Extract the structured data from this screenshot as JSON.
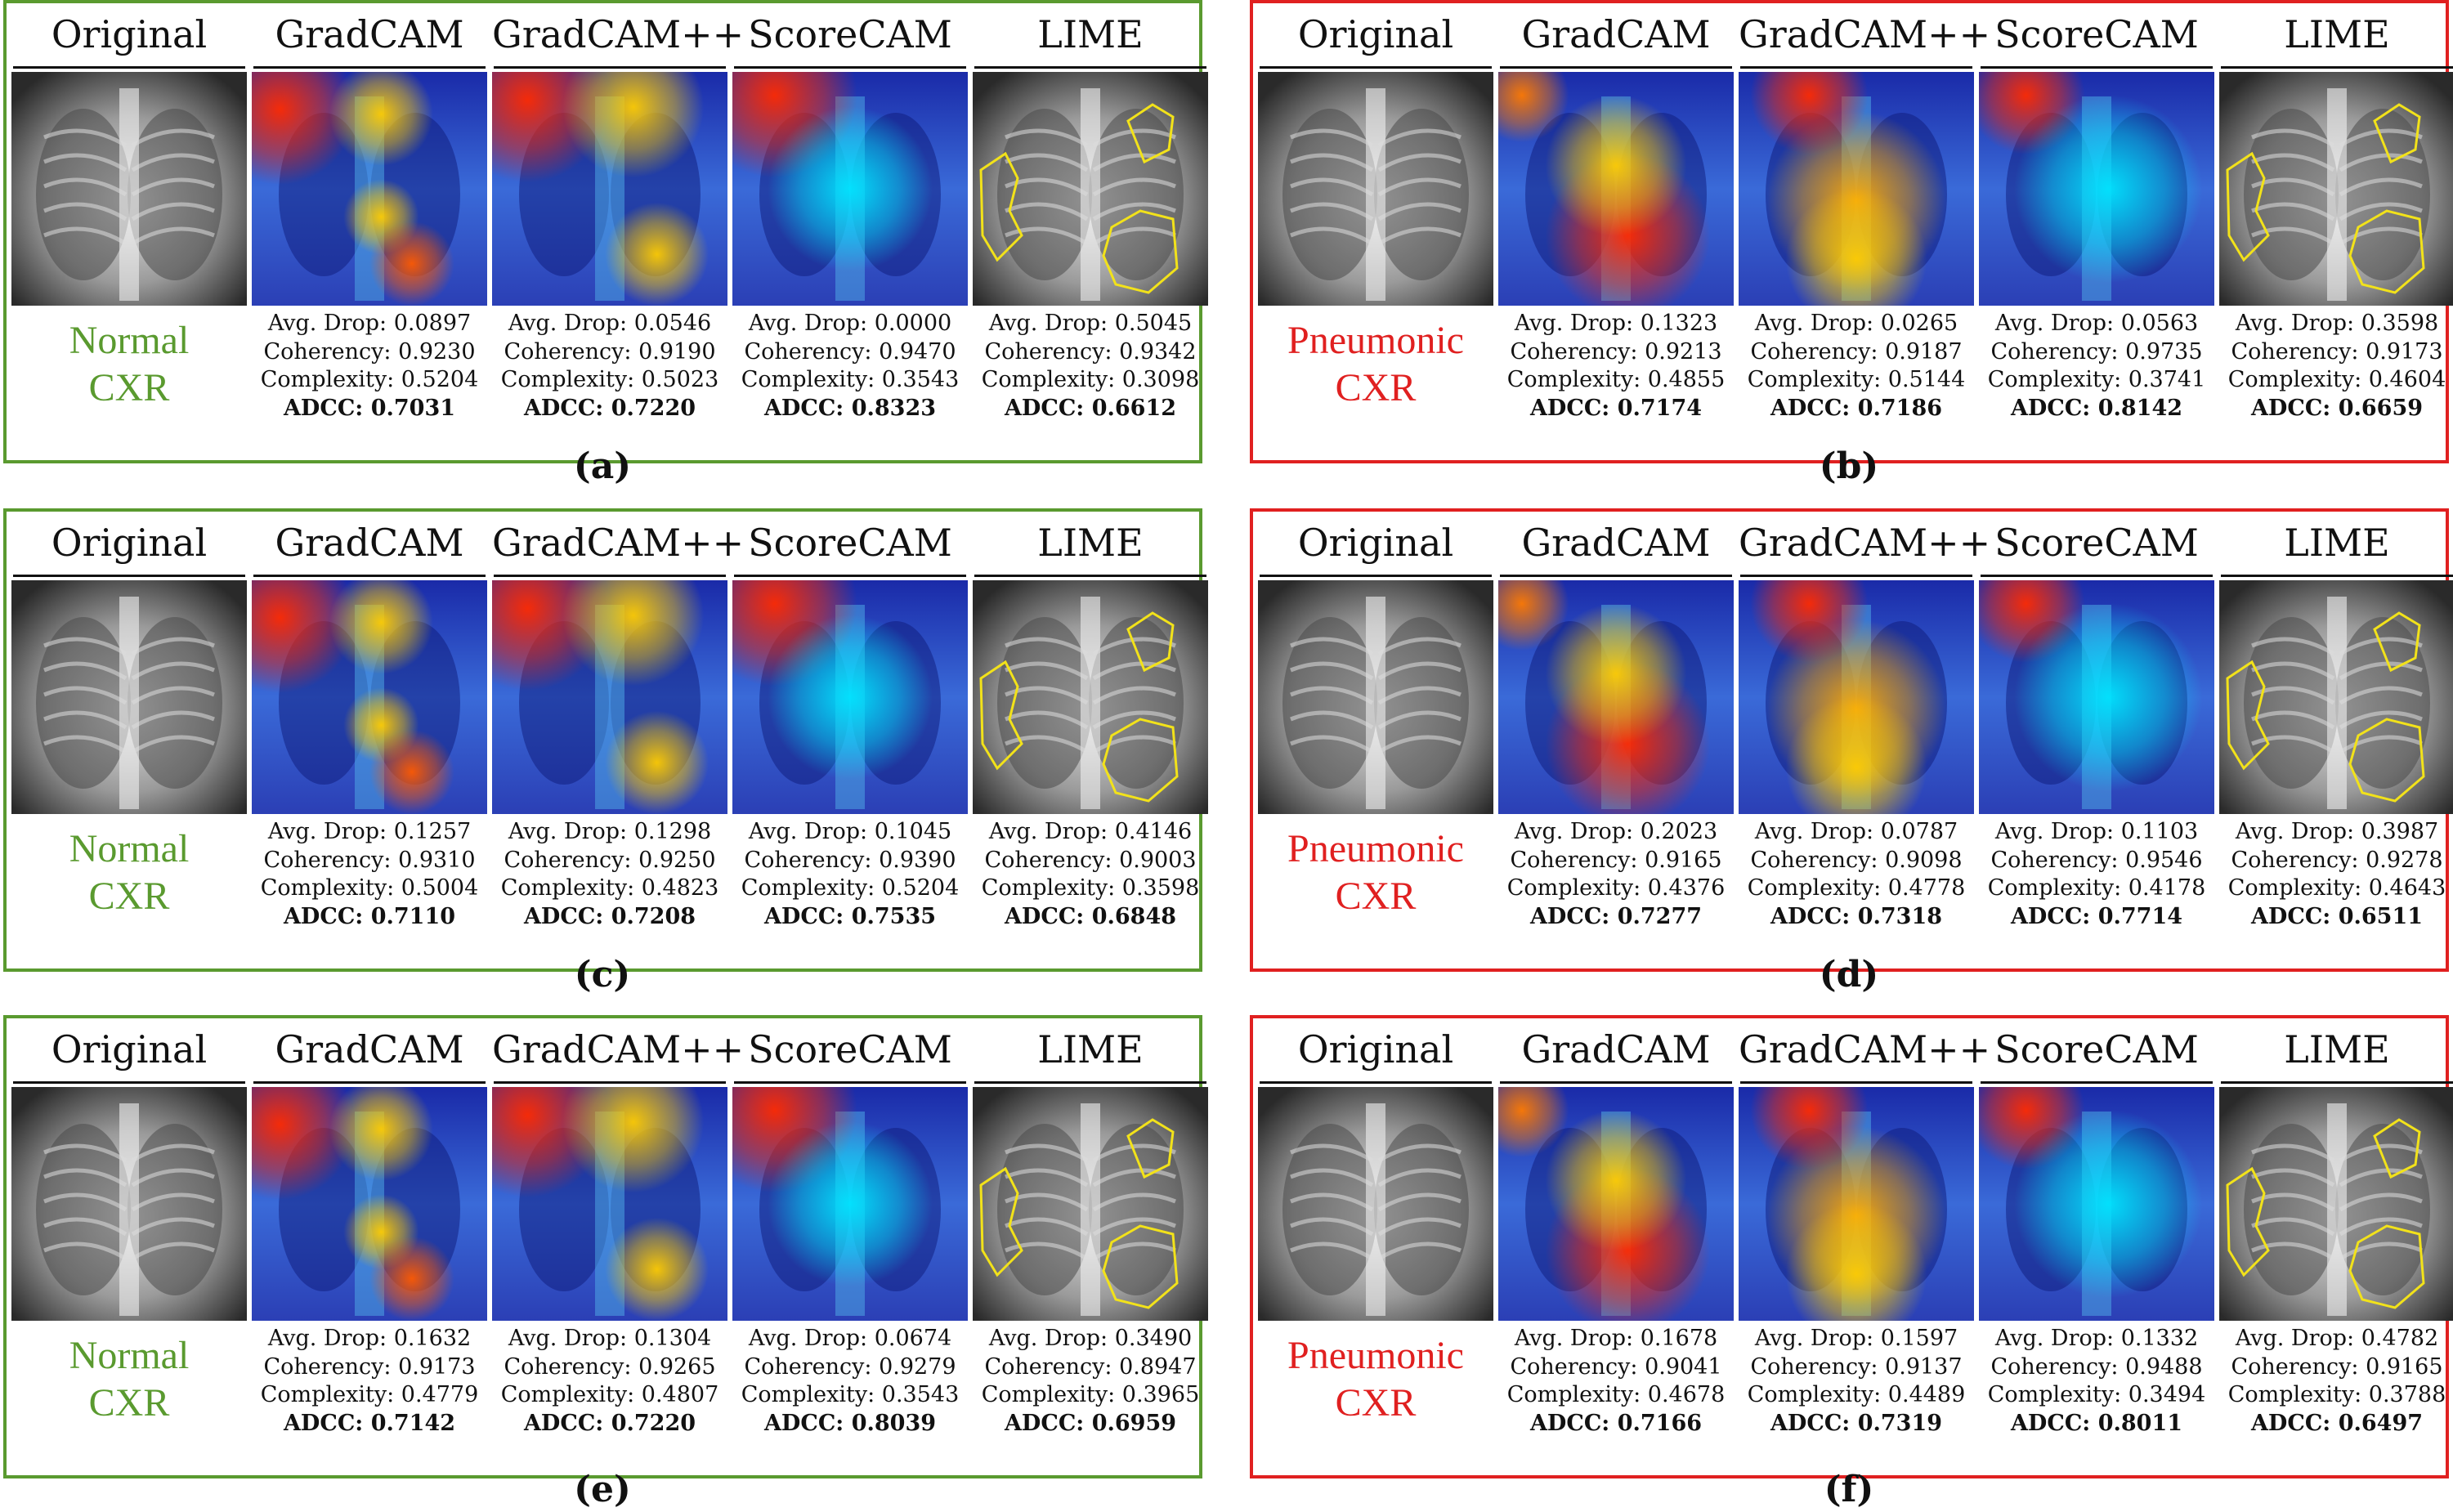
{
  "colors": {
    "normal": "#5a9a2f",
    "pneumonic": "#e02020"
  },
  "column_headers": [
    "Original",
    "GradCAM",
    "GradCAM++",
    "ScoreCAM",
    "LIME"
  ],
  "metric_labels": {
    "drop": "Avg. Drop:",
    "coherency": "Coherency:",
    "complexity": "Complexity:",
    "adcc": "ADCC:"
  },
  "panels": [
    {
      "caption": "(a)",
      "class": "normal",
      "label": [
        "Normal",
        "CXR"
      ],
      "methods": [
        {
          "drop": "0.0897",
          "coherency": "0.9230",
          "complexity": "0.5204",
          "adcc": "0.7031"
        },
        {
          "drop": "0.0546",
          "coherency": "0.9190",
          "complexity": "0.5023",
          "adcc": "0.7220"
        },
        {
          "drop": "0.0000",
          "coherency": "0.9470",
          "complexity": "0.3543",
          "adcc": "0.8323"
        },
        {
          "drop": "0.5045",
          "coherency": "0.9342",
          "complexity": "0.3098",
          "adcc": "0.6612"
        }
      ]
    },
    {
      "caption": "(b)",
      "class": "pneumonic",
      "label": [
        "Pneumonic",
        "CXR"
      ],
      "methods": [
        {
          "drop": "0.1323",
          "coherency": "0.9213",
          "complexity": "0.4855",
          "adcc": "0.7174"
        },
        {
          "drop": "0.0265",
          "coherency": "0.9187",
          "complexity": "0.5144",
          "adcc": "0.7186"
        },
        {
          "drop": "0.0563",
          "coherency": "0.9735",
          "complexity": "0.3741",
          "adcc": "0.8142"
        },
        {
          "drop": "0.3598",
          "coherency": "0.9173",
          "complexity": "0.4604",
          "adcc": "0.6659"
        }
      ]
    },
    {
      "caption": "(c)",
      "class": "normal",
      "label": [
        "Normal",
        "CXR"
      ],
      "methods": [
        {
          "drop": "0.1257",
          "coherency": "0.9310",
          "complexity": "0.5004",
          "adcc": "0.7110"
        },
        {
          "drop": "0.1298",
          "coherency": "0.9250",
          "complexity": "0.4823",
          "adcc": "0.7208"
        },
        {
          "drop": "0.1045",
          "coherency": "0.9390",
          "complexity": "0.5204",
          "adcc": "0.7535"
        },
        {
          "drop": "0.4146",
          "coherency": "0.9003",
          "complexity": "0.3598",
          "adcc": "0.6848"
        }
      ]
    },
    {
      "caption": "(d)",
      "class": "pneumonic",
      "label": [
        "Pneumonic",
        "CXR"
      ],
      "methods": [
        {
          "drop": "0.2023",
          "coherency": "0.9165",
          "complexity": "0.4376",
          "adcc": "0.7277"
        },
        {
          "drop": "0.0787",
          "coherency": "0.9098",
          "complexity": "0.4778",
          "adcc": "0.7318"
        },
        {
          "drop": "0.1103",
          "coherency": "0.9546",
          "complexity": "0.4178",
          "adcc": "0.7714"
        },
        {
          "drop": "0.3987",
          "coherency": "0.9278",
          "complexity": "0.4643",
          "adcc": "0.6511"
        }
      ]
    },
    {
      "caption": "(e)",
      "class": "normal",
      "label": [
        "Normal",
        "CXR"
      ],
      "methods": [
        {
          "drop": "0.1632",
          "coherency": "0.9173",
          "complexity": "0.4779",
          "adcc": "0.7142"
        },
        {
          "drop": "0.1304",
          "coherency": "0.9265",
          "complexity": "0.4807",
          "adcc": "0.7220"
        },
        {
          "drop": "0.0674",
          "coherency": "0.9279",
          "complexity": "0.3543",
          "adcc": "0.8039"
        },
        {
          "drop": "0.3490",
          "coherency": "0.8947",
          "complexity": "0.3965",
          "adcc": "0.6959"
        }
      ]
    },
    {
      "caption": "(f)",
      "class": "pneumonic",
      "label": [
        "Pneumonic",
        "CXR"
      ],
      "methods": [
        {
          "drop": "0.1678",
          "coherency": "0.9041",
          "complexity": "0.4678",
          "adcc": "0.7166"
        },
        {
          "drop": "0.1597",
          "coherency": "0.9137",
          "complexity": "0.4489",
          "adcc": "0.7319"
        },
        {
          "drop": "0.1332",
          "coherency": "0.9488",
          "complexity": "0.3494",
          "adcc": "0.8011"
        },
        {
          "drop": "0.4782",
          "coherency": "0.9165",
          "complexity": "0.3788",
          "adcc": "0.6497"
        }
      ]
    }
  ]
}
